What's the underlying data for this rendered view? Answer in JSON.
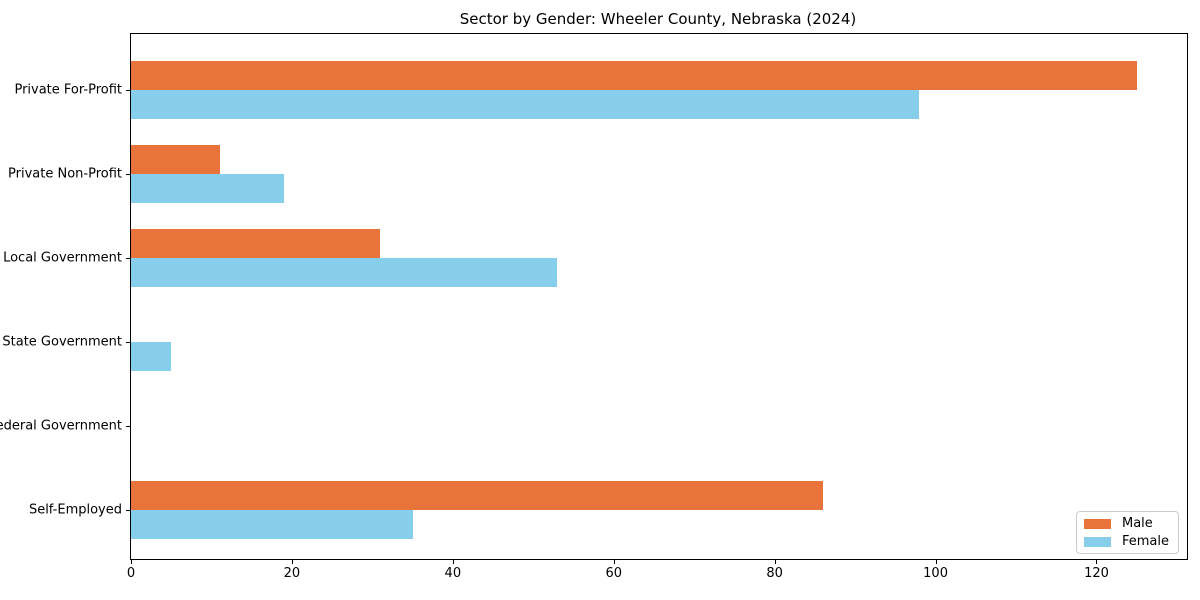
{
  "title": "Sector by Gender: Wheeler County, Nebraska (2024)",
  "chart_data": {
    "type": "bar",
    "orientation": "horizontal",
    "title": "Sector by Gender: Wheeler County, Nebraska (2024)",
    "categories": [
      "Private For-Profit",
      "Private Non-Profit",
      "Local Government",
      "State Government",
      "Federal Government",
      "Self-Employed"
    ],
    "series": [
      {
        "name": "Male",
        "color": "#E8743C",
        "values": [
          125,
          11,
          31,
          0,
          0,
          86
        ]
      },
      {
        "name": "Female",
        "color": "#87CEEB",
        "values": [
          98,
          19,
          53,
          5,
          0,
          35
        ]
      }
    ],
    "xlabel": "",
    "ylabel": "",
    "xlim": [
      0,
      131.25
    ],
    "xticks": [
      0,
      20,
      40,
      60,
      80,
      100,
      120
    ],
    "grid": false,
    "legend_position": "lower right",
    "spine_color": "#000000",
    "background_color": "#ffffff"
  }
}
